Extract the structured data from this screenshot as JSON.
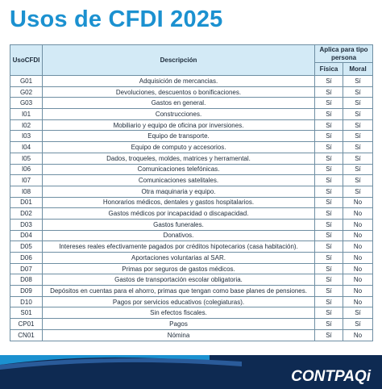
{
  "header": {
    "title": "Usos de CFDI 2025"
  },
  "table": {
    "columns": {
      "code": "UsoCFDI",
      "description": "Descripción",
      "applies": "Aplica para tipo persona",
      "fisica": "Física",
      "moral": "Moral"
    },
    "rows": [
      [
        "G01",
        "Adquisición de mercancias.",
        "Sí",
        "Sí"
      ],
      [
        "G02",
        "Devoluciones, descuentos o bonificaciones.",
        "Sí",
        "Sí"
      ],
      [
        "G03",
        "Gastos en general.",
        "Sí",
        "Sí"
      ],
      [
        "I01",
        "Construcciones.",
        "Sí",
        "Sí"
      ],
      [
        "I02",
        "Mobiliario y equipo de oficina por inversiones.",
        "Sí",
        "Sí"
      ],
      [
        "I03",
        "Equipo de transporte.",
        "Sí",
        "Sí"
      ],
      [
        "I04",
        "Equipo de computo y accesorios.",
        "Sí",
        "Sí"
      ],
      [
        "I05",
        "Dados, troqueles, moldes, matrices y herramental.",
        "Sí",
        "Sí"
      ],
      [
        "I06",
        "Comunicaciones telefónicas.",
        "Sí",
        "Sí"
      ],
      [
        "I07",
        "Comunicaciones satelitales.",
        "Sí",
        "Sí"
      ],
      [
        "I08",
        "Otra maquinaria y equipo.",
        "Sí",
        "Sí"
      ],
      [
        "D01",
        "Honorarios médicos, dentales y gastos hospitalarios.",
        "Sí",
        "No"
      ],
      [
        "D02",
        "Gastos médicos por incapacidad o discapacidad.",
        "Sí",
        "No"
      ],
      [
        "D03",
        "Gastos funerales.",
        "Sí",
        "No"
      ],
      [
        "D04",
        "Donativos.",
        "Sí",
        "No"
      ],
      [
        "D05",
        "Intereses reales efectivamente pagados por créditos hipotecarios (casa habitación).",
        "Sí",
        "No"
      ],
      [
        "D06",
        "Aportaciones voluntarias al SAR.",
        "Sí",
        "No"
      ],
      [
        "D07",
        "Primas por seguros de gastos médicos.",
        "Sí",
        "No"
      ],
      [
        "D08",
        "Gastos de transportación escolar obligatoria.",
        "Sí",
        "No"
      ],
      [
        "D09",
        "Depósitos en cuentas para el ahorro, primas que tengan como base planes de pensiones.",
        "Sí",
        "No"
      ],
      [
        "D10",
        "Pagos por servicios educativos (colegiaturas).",
        "Sí",
        "No"
      ],
      [
        "S01",
        "Sin efectos fiscales.",
        "Sí",
        "Sí"
      ],
      [
        "CP01",
        "Pagos",
        "Sí",
        "Sí"
      ],
      [
        "CN01",
        "Nómina",
        "Sí",
        "No"
      ]
    ]
  },
  "footer": {
    "logo": "CONTPAQi"
  }
}
